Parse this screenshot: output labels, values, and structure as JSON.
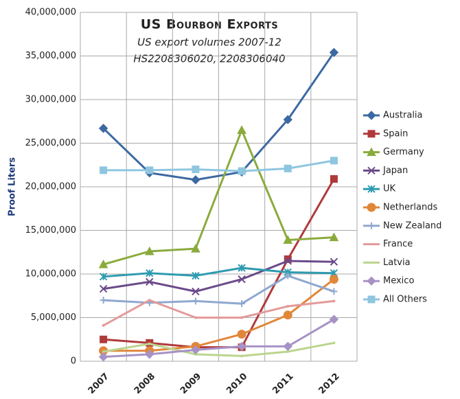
{
  "chart_data": {
    "type": "line",
    "title": "US Bourbon Exports",
    "subtitle": [
      "US export volumes  2007-12",
      "HS2208306020, 2208306040"
    ],
    "y_label": "Proof Liters",
    "categories": [
      "2007",
      "2008",
      "2009",
      "2010",
      "2011",
      "2012"
    ],
    "ylim": [
      0,
      40000000
    ],
    "yticks": [
      0,
      {
        "value": 5000000,
        "label": "5,000,000"
      },
      {
        "value": 10000000,
        "label": "10,000,000"
      },
      {
        "value": 15000000,
        "label": "15,000,000"
      },
      {
        "value": 20000000,
        "label": "20,000,000"
      },
      {
        "value": 25000000,
        "label": "25,000,000"
      },
      {
        "value": 30000000,
        "label": "30,000,000"
      },
      {
        "value": 35000000,
        "label": "35,000,000"
      },
      {
        "value": 40000000,
        "label": "40,000,000"
      }
    ],
    "grid": true,
    "legend": "right",
    "series": [
      {
        "name": "Australia",
        "color": "#3c69a2",
        "marker": "diamond",
        "values": [
          26700000,
          21600000,
          20800000,
          21700000,
          27700000,
          35400000
        ]
      },
      {
        "name": "Spain",
        "color": "#b03a3a",
        "marker": "square",
        "values": [
          2500000,
          2100000,
          1600000,
          1600000,
          11700000,
          20900000
        ]
      },
      {
        "name": "Germany",
        "color": "#8aab3c",
        "marker": "triangle",
        "values": [
          11100000,
          12600000,
          12900000,
          26500000,
          13900000,
          14200000
        ]
      },
      {
        "name": "Japan",
        "color": "#6b4a8a",
        "marker": "x",
        "values": [
          8300000,
          9100000,
          8000000,
          9400000,
          11500000,
          11400000
        ]
      },
      {
        "name": "UK",
        "color": "#2e9bb0",
        "marker": "asterisk",
        "values": [
          9700000,
          10100000,
          9800000,
          10700000,
          10200000,
          10100000
        ]
      },
      {
        "name": "Netherlands",
        "color": "#e0873a",
        "marker": "circle",
        "values": [
          1200000,
          1200000,
          1700000,
          3100000,
          5300000,
          9400000
        ]
      },
      {
        "name": "New Zealand",
        "color": "#8fa8d0",
        "marker": "plus",
        "values": [
          7000000,
          6700000,
          6900000,
          6600000,
          9800000,
          8000000
        ]
      },
      {
        "name": "France",
        "color": "#e39a9a",
        "marker": "none",
        "values": [
          4100000,
          7000000,
          5000000,
          5000000,
          6300000,
          6900000
        ]
      },
      {
        "name": "Latvia",
        "color": "#bcd48e",
        "marker": "none",
        "values": [
          1100000,
          2000000,
          800000,
          600000,
          1100000,
          2100000
        ]
      },
      {
        "name": "Mexico",
        "color": "#a792c6",
        "marker": "diamond",
        "values": [
          500000,
          800000,
          1300000,
          1700000,
          1700000,
          4800000
        ]
      },
      {
        "name": "All Others",
        "color": "#8ec6e0",
        "marker": "square",
        "values": [
          21900000,
          21900000,
          22000000,
          21800000,
          22100000,
          23000000
        ]
      }
    ]
  }
}
